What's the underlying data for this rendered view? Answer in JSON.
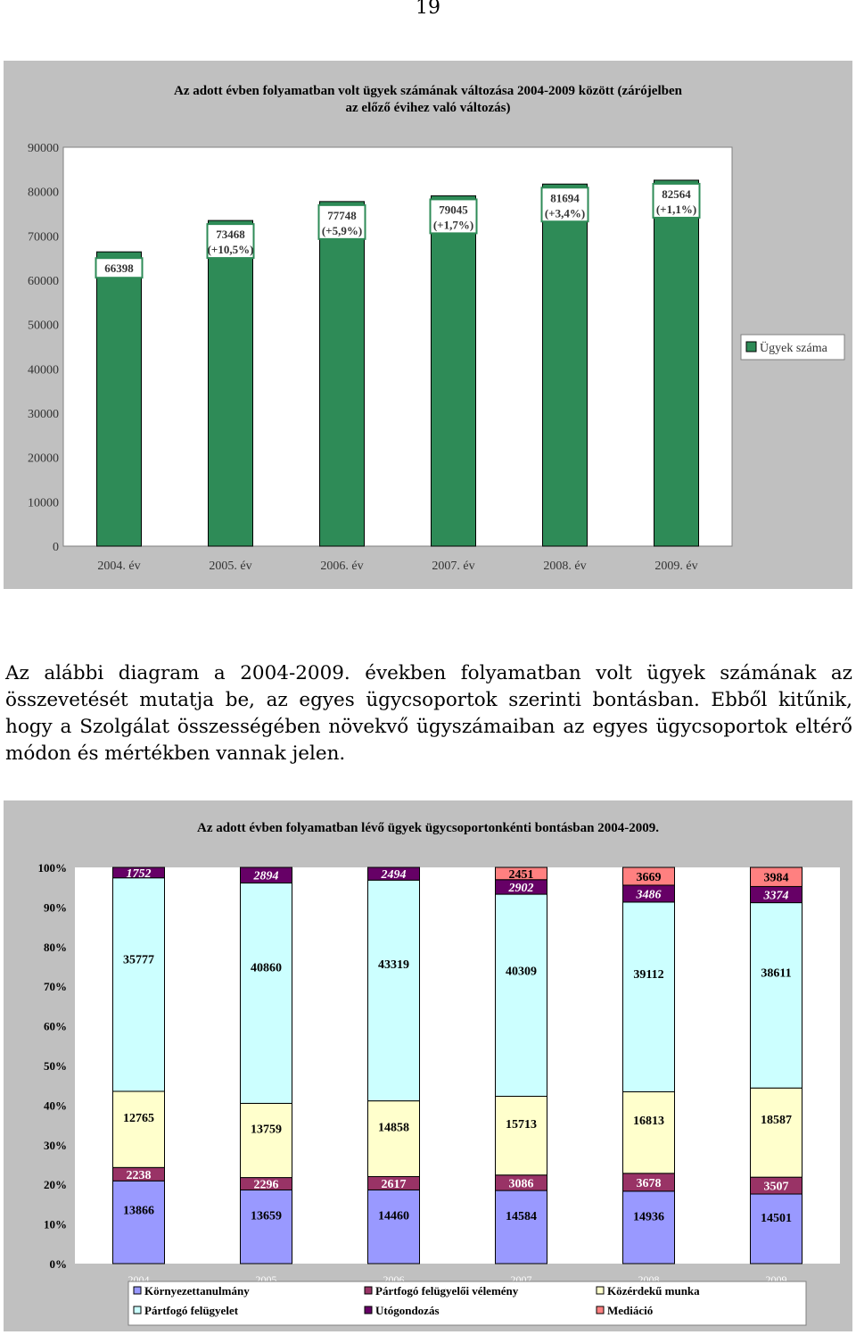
{
  "page_number": "19",
  "paragraph": "Az alábbi diagram a 2004-2009. években folyamatban volt ügyek számának az összevetését mutatja be, az egyes ügycsoportok szerinti bontásban. Ebből kitűnik, hogy a Szolgálat összességében növekvő ügyszámaiban az egyes ügycsoportok eltérő módon és mértékben vannak jelen.",
  "colors": {
    "panel_bg": "#c0c0c0",
    "bar_green": "#2e8b57",
    "label_border_green": "#2e8b57",
    "kornyezettanulmany": "#9999ff",
    "partfogo_velemeny": "#993366",
    "kozerdeku_munka": "#ffffcc",
    "partfogo_felugyelet": "#ccffff",
    "utogondozas": "#660066",
    "mediacio": "#ff8080"
  },
  "chart_data": [
    {
      "type": "bar",
      "title": "Az adott évben folyamatban volt ügyek számának változása 2004-2009 között (zárójelben az előző évihez való változás)",
      "categories": [
        "2004. év",
        "2005. év",
        "2006. év",
        "2007. év",
        "2008. év",
        "2009. év"
      ],
      "series": [
        {
          "name": "Ügyek száma",
          "values": [
            66398,
            73468,
            77748,
            79045,
            81694,
            82564
          ]
        }
      ],
      "data_labels": [
        [
          "66398"
        ],
        [
          "73468",
          "(+10,5%)"
        ],
        [
          "77748",
          "(+5,9%)"
        ],
        [
          "79045",
          "(+1,7%)"
        ],
        [
          "81694",
          "(+3,4%)"
        ],
        [
          "82564",
          "(+1,1%)"
        ]
      ],
      "ylim": [
        0,
        90000
      ],
      "yticks": [
        "0",
        "10000",
        "20000",
        "30000",
        "40000",
        "50000",
        "60000",
        "70000",
        "80000",
        "90000"
      ],
      "legend_position": "right",
      "grid": false
    },
    {
      "type": "bar",
      "stacked": "percent",
      "title": "Az adott évben folyamatban lévő ügyek ügycsoportonkénti bontásban 2004-2009.",
      "categories": [
        "2004",
        "2005",
        "2006",
        "2007",
        "2008",
        "2009"
      ],
      "series": [
        {
          "name": "Környezettanulmány",
          "values": [
            13866,
            13659,
            14460,
            14584,
            14936,
            14501
          ]
        },
        {
          "name": "Pártfogó felügyelői vélemény",
          "values": [
            2238,
            2296,
            2617,
            3086,
            3678,
            3507
          ]
        },
        {
          "name": "Közérdekű munka",
          "values": [
            12765,
            13759,
            14858,
            15713,
            16813,
            18587
          ]
        },
        {
          "name": "Pártfogó felügyelet",
          "values": [
            35777,
            40860,
            43319,
            40309,
            39112,
            38611
          ]
        },
        {
          "name": "Utógondozás",
          "values": [
            1752,
            2894,
            2494,
            2902,
            3486,
            3374
          ]
        },
        {
          "name": "Mediáció",
          "values": [
            null,
            null,
            null,
            2451,
            3669,
            3984
          ]
        }
      ],
      "yticks": [
        "0%",
        "10%",
        "20%",
        "30%",
        "40%",
        "50%",
        "60%",
        "70%",
        "80%",
        "90%",
        "100%"
      ],
      "legend_position": "bottom",
      "grid": false
    }
  ]
}
